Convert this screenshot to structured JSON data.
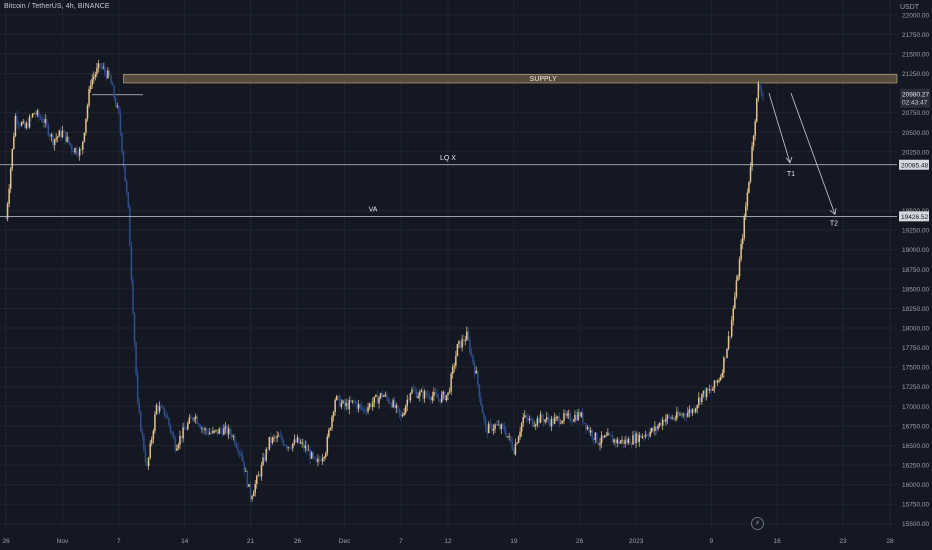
{
  "header": {
    "title": "Bitcoin / TetherUS, 4h, BINANCE",
    "currency": "USDT"
  },
  "colors": {
    "background": "#141823",
    "up": "#e8c48a",
    "down": "#2f4f8f",
    "grid": "#1f2431",
    "line": "#c9ccd3",
    "supply_fill": "#6b5d46",
    "axis_text": "#9aa0ab"
  },
  "icons": {
    "replay": "flash-icon"
  },
  "chart_data": {
    "type": "candlestick",
    "title": "Bitcoin / TetherUS, 4h, BINANCE",
    "ylim": [
      15420,
      22190
    ],
    "y_ticks": [
      {
        "value": 22000,
        "label": "22000.00"
      },
      {
        "value": 21750,
        "label": "21750.00"
      },
      {
        "value": 21500,
        "label": "21500.00"
      },
      {
        "value": 21250,
        "label": "21250.00"
      },
      {
        "value": 20750,
        "label": "20750.00"
      },
      {
        "value": 20500,
        "label": "20500.00"
      },
      {
        "value": 20250,
        "label": "20250.00"
      },
      {
        "value": 19500,
        "label": "19500.00"
      },
      {
        "value": 19250,
        "label": "19250.00"
      },
      {
        "value": 19000,
        "label": "19000.00"
      },
      {
        "value": 18750,
        "label": "18750.00"
      },
      {
        "value": 18500,
        "label": "18500.00"
      },
      {
        "value": 18250,
        "label": "18250.00"
      },
      {
        "value": 18000,
        "label": "18000.00"
      },
      {
        "value": 17750,
        "label": "17750.00"
      },
      {
        "value": 17500,
        "label": "17500.00"
      },
      {
        "value": 17250,
        "label": "17250.00"
      },
      {
        "value": 17000,
        "label": "17000.00"
      },
      {
        "value": 16750,
        "label": "16750.00"
      },
      {
        "value": 16500,
        "label": "16500.00"
      },
      {
        "value": 16250,
        "label": "16250.00"
      },
      {
        "value": 16000,
        "label": "16000.00"
      },
      {
        "value": 15750,
        "label": "15750.00"
      },
      {
        "value": 15500,
        "label": "15500.00"
      }
    ],
    "x_range": [
      "2022-10-26",
      "2023-01-28"
    ],
    "x_ticks": [
      {
        "date": "2022-10-26",
        "label": "26"
      },
      {
        "date": "2022-11-01",
        "label": "Nov"
      },
      {
        "date": "2022-11-07",
        "label": "7"
      },
      {
        "date": "2022-11-14",
        "label": "14"
      },
      {
        "date": "2022-11-21",
        "label": "21"
      },
      {
        "date": "2022-11-26",
        "label": "26"
      },
      {
        "date": "2022-12-01",
        "label": "Dec"
      },
      {
        "date": "2022-12-07",
        "label": "7"
      },
      {
        "date": "2022-12-12",
        "label": "12"
      },
      {
        "date": "2022-12-19",
        "label": "19"
      },
      {
        "date": "2022-12-26",
        "label": "26"
      },
      {
        "date": "2023-01-01",
        "label": "2023"
      },
      {
        "date": "2023-01-09",
        "label": "9"
      },
      {
        "date": "2023-01-16",
        "label": "16"
      },
      {
        "date": "2023-01-23",
        "label": "23"
      },
      {
        "date": "2023-01-28",
        "label": "28"
      }
    ],
    "price_path": [
      {
        "date": "2022-10-26",
        "price": 19400
      },
      {
        "date": "2022-10-27",
        "price": 20700
      },
      {
        "date": "2022-10-28",
        "price": 20550
      },
      {
        "date": "2022-10-29",
        "price": 20750
      },
      {
        "date": "2022-10-30",
        "price": 20650
      },
      {
        "date": "2022-10-31",
        "price": 20400
      },
      {
        "date": "2022-11-01",
        "price": 20500
      },
      {
        "date": "2022-11-02",
        "price": 20300
      },
      {
        "date": "2022-11-03",
        "price": 20250
      },
      {
        "date": "2022-11-04",
        "price": 21150
      },
      {
        "date": "2022-11-05",
        "price": 21350
      },
      {
        "date": "2022-11-06",
        "price": 21200
      },
      {
        "date": "2022-11-07",
        "price": 20700
      },
      {
        "date": "2022-11-08",
        "price": 19500
      },
      {
        "date": "2022-11-09",
        "price": 17000
      },
      {
        "date": "2022-11-10",
        "price": 16200
      },
      {
        "date": "2022-11-11",
        "price": 17000
      },
      {
        "date": "2022-11-12",
        "price": 16900
      },
      {
        "date": "2022-11-13",
        "price": 16500
      },
      {
        "date": "2022-11-14",
        "price": 16700
      },
      {
        "date": "2022-11-15",
        "price": 16900
      },
      {
        "date": "2022-11-16",
        "price": 16700
      },
      {
        "date": "2022-11-17",
        "price": 16650
      },
      {
        "date": "2022-11-18",
        "price": 16700
      },
      {
        "date": "2022-11-19",
        "price": 16650
      },
      {
        "date": "2022-11-20",
        "price": 16400
      },
      {
        "date": "2022-11-21",
        "price": 15850
      },
      {
        "date": "2022-11-22",
        "price": 16150
      },
      {
        "date": "2022-11-23",
        "price": 16550
      },
      {
        "date": "2022-11-24",
        "price": 16600
      },
      {
        "date": "2022-11-25",
        "price": 16500
      },
      {
        "date": "2022-11-26",
        "price": 16550
      },
      {
        "date": "2022-11-27",
        "price": 16450
      },
      {
        "date": "2022-11-28",
        "price": 16250
      },
      {
        "date": "2022-11-29",
        "price": 16450
      },
      {
        "date": "2022-11-30",
        "price": 17100
      },
      {
        "date": "2022-12-01",
        "price": 17000
      },
      {
        "date": "2022-12-02",
        "price": 17050
      },
      {
        "date": "2022-12-03",
        "price": 16950
      },
      {
        "date": "2022-12-04",
        "price": 17050
      },
      {
        "date": "2022-12-05",
        "price": 17150
      },
      {
        "date": "2022-12-06",
        "price": 17050
      },
      {
        "date": "2022-12-07",
        "price": 16850
      },
      {
        "date": "2022-12-08",
        "price": 17200
      },
      {
        "date": "2022-12-09",
        "price": 17150
      },
      {
        "date": "2022-12-10",
        "price": 17150
      },
      {
        "date": "2022-12-11",
        "price": 17100
      },
      {
        "date": "2022-12-12",
        "price": 17150
      },
      {
        "date": "2022-12-13",
        "price": 17750
      },
      {
        "date": "2022-12-14",
        "price": 17900
      },
      {
        "date": "2022-12-15",
        "price": 17400
      },
      {
        "date": "2022-12-16",
        "price": 16700
      },
      {
        "date": "2022-12-17",
        "price": 16750
      },
      {
        "date": "2022-12-18",
        "price": 16700
      },
      {
        "date": "2022-12-19",
        "price": 16450
      },
      {
        "date": "2022-12-20",
        "price": 16850
      },
      {
        "date": "2022-12-21",
        "price": 16800
      },
      {
        "date": "2022-12-22",
        "price": 16850
      },
      {
        "date": "2022-12-23",
        "price": 16800
      },
      {
        "date": "2022-12-24",
        "price": 16850
      },
      {
        "date": "2022-12-25",
        "price": 16850
      },
      {
        "date": "2022-12-26",
        "price": 16900
      },
      {
        "date": "2022-12-27",
        "price": 16700
      },
      {
        "date": "2022-12-28",
        "price": 16550
      },
      {
        "date": "2022-12-29",
        "price": 16600
      },
      {
        "date": "2022-12-30",
        "price": 16550
      },
      {
        "date": "2022-12-31",
        "price": 16550
      },
      {
        "date": "2023-01-01",
        "price": 16600
      },
      {
        "date": "2023-01-02",
        "price": 16650
      },
      {
        "date": "2023-01-03",
        "price": 16700
      },
      {
        "date": "2023-01-04",
        "price": 16850
      },
      {
        "date": "2023-01-05",
        "price": 16850
      },
      {
        "date": "2023-01-06",
        "price": 16900
      },
      {
        "date": "2023-01-07",
        "price": 16950
      },
      {
        "date": "2023-01-08",
        "price": 17150
      },
      {
        "date": "2023-01-09",
        "price": 17200
      },
      {
        "date": "2023-01-10",
        "price": 17400
      },
      {
        "date": "2023-01-11",
        "price": 17950
      },
      {
        "date": "2023-01-12",
        "price": 18850
      },
      {
        "date": "2023-01-13",
        "price": 19900
      },
      {
        "date": "2023-01-14",
        "price": 21100
      },
      {
        "date": "2023-01-14T12:00",
        "price": 20980
      }
    ],
    "annotations": {
      "supply": {
        "label": "SUPPLY",
        "from": 21130,
        "to": 21240,
        "start": "2022-11-06",
        "end": "2023-01-28"
      },
      "lqx": {
        "label": "LQ X",
        "value": 20085.48,
        "value_label": "20085.48"
      },
      "va": {
        "label": "VA",
        "value": 19426.52,
        "value_label": "19426.52"
      },
      "t1": {
        "label": "T1"
      },
      "t2": {
        "label": "T2"
      },
      "last_price": {
        "value": 20980.27,
        "label": "20980.27",
        "countdown": "02:43:47"
      }
    }
  }
}
